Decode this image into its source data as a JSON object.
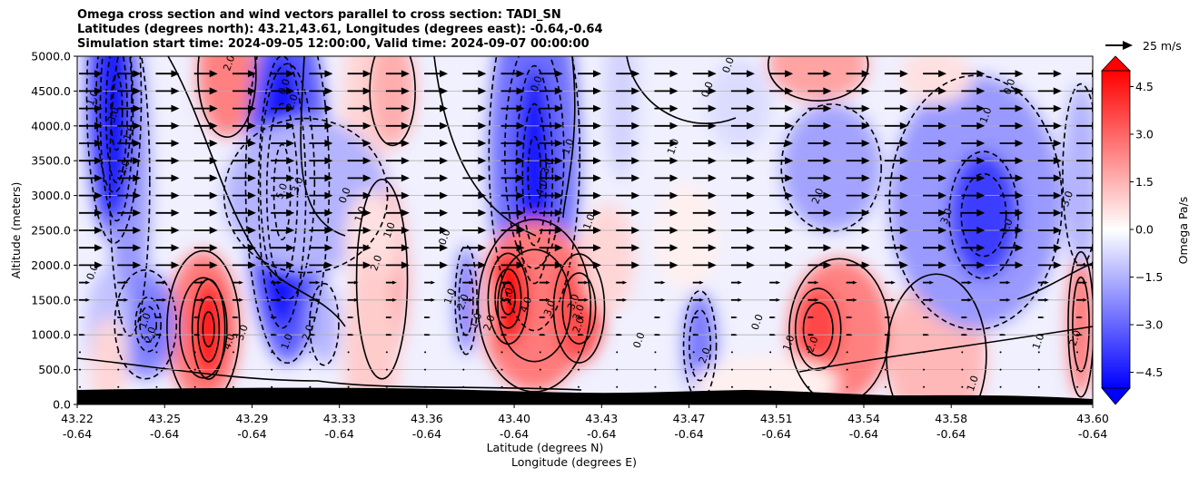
{
  "chart_data": {
    "type": "heatmap",
    "title_lines": [
      "Omega cross section and wind vectors parallel to cross section: TADI_SN",
      "Latitudes (degrees north): 43.21,43.61, Longitudes (degrees east): -0.64,-0.64",
      "Simulation start time: 2024-09-05 12:00:00, Valid time: 2024-09-07 00:00:00"
    ],
    "ylabel": "Altitude (meters)",
    "xlabel": "Latitude (degrees N)",
    "xlabel2": "Longitude (degrees E)",
    "ylim": [
      0,
      5000
    ],
    "y_ticks": [
      "0.0",
      "500.0",
      "1000.0",
      "1500.0",
      "2000.0",
      "2500.0",
      "3000.0",
      "3500.0",
      "4000.0",
      "4500.0",
      "5000.0"
    ],
    "x_ticks": [
      {
        "lat": "43.22",
        "lon": "-0.64"
      },
      {
        "lat": "43.25",
        "lon": "-0.64"
      },
      {
        "lat": "43.29",
        "lon": "-0.64"
      },
      {
        "lat": "43.33",
        "lon": "-0.64"
      },
      {
        "lat": "43.36",
        "lon": "-0.64"
      },
      {
        "lat": "43.40",
        "lon": "-0.64"
      },
      {
        "lat": "43.43",
        "lon": "-0.64"
      },
      {
        "lat": "43.47",
        "lon": "-0.64"
      },
      {
        "lat": "43.51",
        "lon": "-0.64"
      },
      {
        "lat": "43.54",
        "lon": "-0.64"
      },
      {
        "lat": "43.58",
        "lon": "-0.64"
      },
      {
        "lat": "43.60",
        "lon": "-0.64"
      }
    ],
    "grid": "horizontal",
    "colorbar": {
      "label": "Omega Pa/s",
      "range": [
        -5,
        5
      ],
      "ticks": [
        "4.5",
        "3.0",
        "1.5",
        "0.0",
        "−1.5",
        "−3.0",
        "−4.5"
      ],
      "extend": "both",
      "colormap": "bwr",
      "neg_color": "#0000ff",
      "pos_color": "#ff0000"
    },
    "quiver_key": "25 m/s",
    "contour_labels": [
      {
        "t": "1.0",
        "x": 43.224,
        "y": 4400
      },
      {
        "t": "3.0",
        "x": 43.232,
        "y": 4150
      },
      {
        "t": "1.0",
        "x": 43.238,
        "y": 3900
      },
      {
        "t": "1.0",
        "x": 43.236,
        "y": 3400
      },
      {
        "t": "2.0",
        "x": 43.276,
        "y": 4900
      },
      {
        "t": "0.0",
        "x": 43.297,
        "y": 4560
      },
      {
        "t": "2.0",
        "x": 43.3,
        "y": 4340
      },
      {
        "t": "5.0",
        "x": 43.296,
        "y": 3060
      },
      {
        "t": "3.0",
        "x": 43.302,
        "y": 3150
      },
      {
        "t": "0.0",
        "x": 43.32,
        "y": 3000
      },
      {
        "t": "1.0",
        "x": 43.326,
        "y": 2730
      },
      {
        "t": "1.0",
        "x": 43.337,
        "y": 2500
      },
      {
        "t": "2.0",
        "x": 43.332,
        "y": 2030
      },
      {
        "t": "0.0",
        "x": 43.358,
        "y": 2400
      },
      {
        "t": "0.0",
        "x": 43.224,
        "y": 1900
      },
      {
        "t": "1.0",
        "x": 43.244,
        "y": 1200
      },
      {
        "t": "2.0",
        "x": 43.246,
        "y": 1000
      },
      {
        "t": "4.0",
        "x": 43.276,
        "y": 900
      },
      {
        "t": "3.0",
        "x": 43.281,
        "y": 1030
      },
      {
        "t": "1.0",
        "x": 43.298,
        "y": 900
      },
      {
        "t": "2.0",
        "x": 43.306,
        "y": 1030
      },
      {
        "t": "1.0",
        "x": 43.36,
        "y": 1550
      },
      {
        "t": "2.0",
        "x": 43.365,
        "y": 1470
      },
      {
        "t": "1.0",
        "x": 43.37,
        "y": 1200
      },
      {
        "t": "2.0",
        "x": 43.375,
        "y": 1170
      },
      {
        "t": "5.0",
        "x": 43.382,
        "y": 1560
      },
      {
        "t": "4.0",
        "x": 43.389,
        "y": 1430
      },
      {
        "t": "3.0",
        "x": 43.398,
        "y": 1380
      },
      {
        "t": "3.0",
        "x": 43.407,
        "y": 1470
      },
      {
        "t": "3.0",
        "x": 43.409,
        "y": 1320
      },
      {
        "t": "2.0",
        "x": 43.409,
        "y": 1140
      },
      {
        "t": "0.0",
        "x": 43.393,
        "y": 4600
      },
      {
        "t": "3.0",
        "x": 43.397,
        "y": 3420
      },
      {
        "t": "4.0",
        "x": 43.395,
        "y": 3110
      },
      {
        "t": "1.0",
        "x": 43.405,
        "y": 3700
      },
      {
        "t": "1.0",
        "x": 43.413,
        "y": 2620
      },
      {
        "t": "0.0",
        "x": 43.432,
        "y": 920
      },
      {
        "t": "2.0",
        "x": 43.457,
        "y": 700
      },
      {
        "t": "0.0",
        "x": 43.477,
        "y": 1180
      },
      {
        "t": "1.0",
        "x": 43.489,
        "y": 880
      },
      {
        "t": "2.0",
        "x": 43.498,
        "y": 860
      },
      {
        "t": "0.0",
        "x": 43.466,
        "y": 4870
      },
      {
        "t": "0.0",
        "x": 43.458,
        "y": 4520
      },
      {
        "t": "1.0",
        "x": 43.445,
        "y": 3700
      },
      {
        "t": "2.0",
        "x": 43.5,
        "y": 2990
      },
      {
        "t": "3.0",
        "x": 43.549,
        "y": 2700
      },
      {
        "t": "4.0",
        "x": 43.572,
        "y": 2550
      },
      {
        "t": "3.0",
        "x": 43.595,
        "y": 2950
      },
      {
        "t": "0.0",
        "x": 43.573,
        "y": 4560
      },
      {
        "t": "1.0",
        "x": 43.564,
        "y": 4150
      },
      {
        "t": "1.0",
        "x": 43.584,
        "y": 900
      },
      {
        "t": "2.0",
        "x": 43.598,
        "y": 950
      },
      {
        "t": "1.0",
        "x": 43.559,
        "y": 300
      }
    ]
  }
}
